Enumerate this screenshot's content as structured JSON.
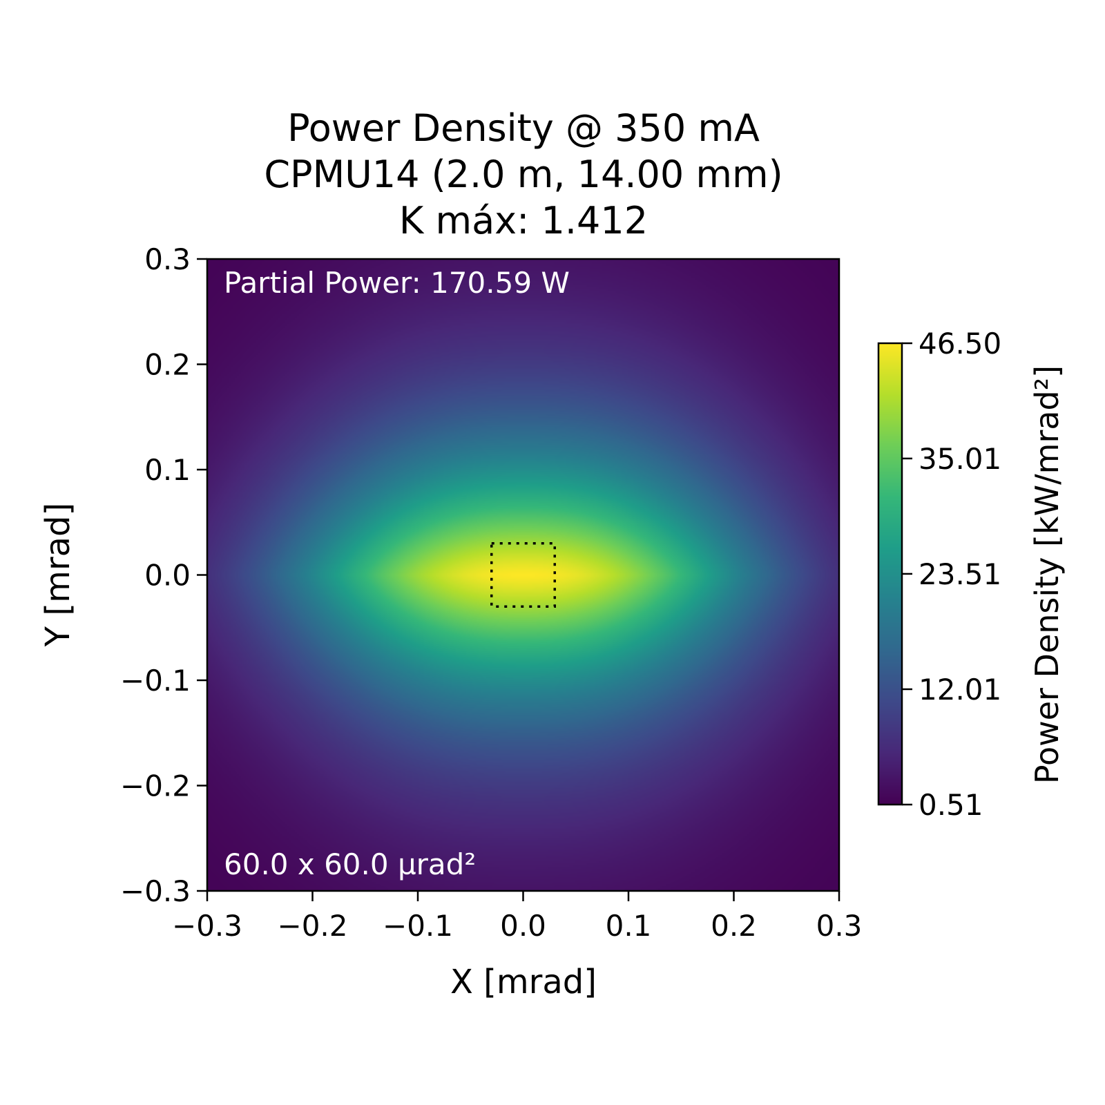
{
  "chart_data": {
    "type": "heatmap",
    "title_lines": [
      "Power Density @ 350 mA",
      "CPMU14 (2.0 m, 14.00 mm)",
      "K máx: 1.412"
    ],
    "xlabel": "X [mrad]",
    "ylabel": "Y [mrad]",
    "xlim": [
      -0.3,
      0.3
    ],
    "ylim": [
      -0.3,
      0.3
    ],
    "x_ticks": [
      -0.3,
      -0.2,
      -0.1,
      0.0,
      0.1,
      0.2,
      0.3
    ],
    "x_tick_labels": [
      "−0.3",
      "−0.2",
      "−0.1",
      "0.0",
      "0.1",
      "0.2",
      "0.3"
    ],
    "y_ticks": [
      -0.3,
      -0.2,
      -0.1,
      0.0,
      0.1,
      0.2,
      0.3
    ],
    "y_tick_labels": [
      "−0.3",
      "−0.2",
      "−0.1",
      "0.0",
      "0.1",
      "0.2",
      "0.3"
    ],
    "colormap": "viridis",
    "colorbar": {
      "label": "Power Density [kW/mrad²]",
      "min": 0.51,
      "max": 46.5,
      "ticks": [
        0.51,
        12.01,
        23.51,
        35.01,
        46.5
      ],
      "tick_labels": [
        "0.51",
        "12.01",
        "23.51",
        "35.01",
        "46.50"
      ]
    },
    "distribution": {
      "peak": 46.5,
      "floor": 0.51,
      "center": [
        0.0,
        0.0
      ],
      "x_half_width": 0.19,
      "y_half_width": 0.098,
      "edge_value_x": 7.0,
      "edge_value_y": 3.0
    },
    "aperture_box": {
      "x": [
        -0.03,
        0.03
      ],
      "y": [
        -0.03,
        0.03
      ],
      "style": "dotted"
    },
    "annotations": {
      "partial_power": "Partial Power: 170.59 W",
      "aperture": "60.0 x 60.0 µrad²"
    }
  }
}
